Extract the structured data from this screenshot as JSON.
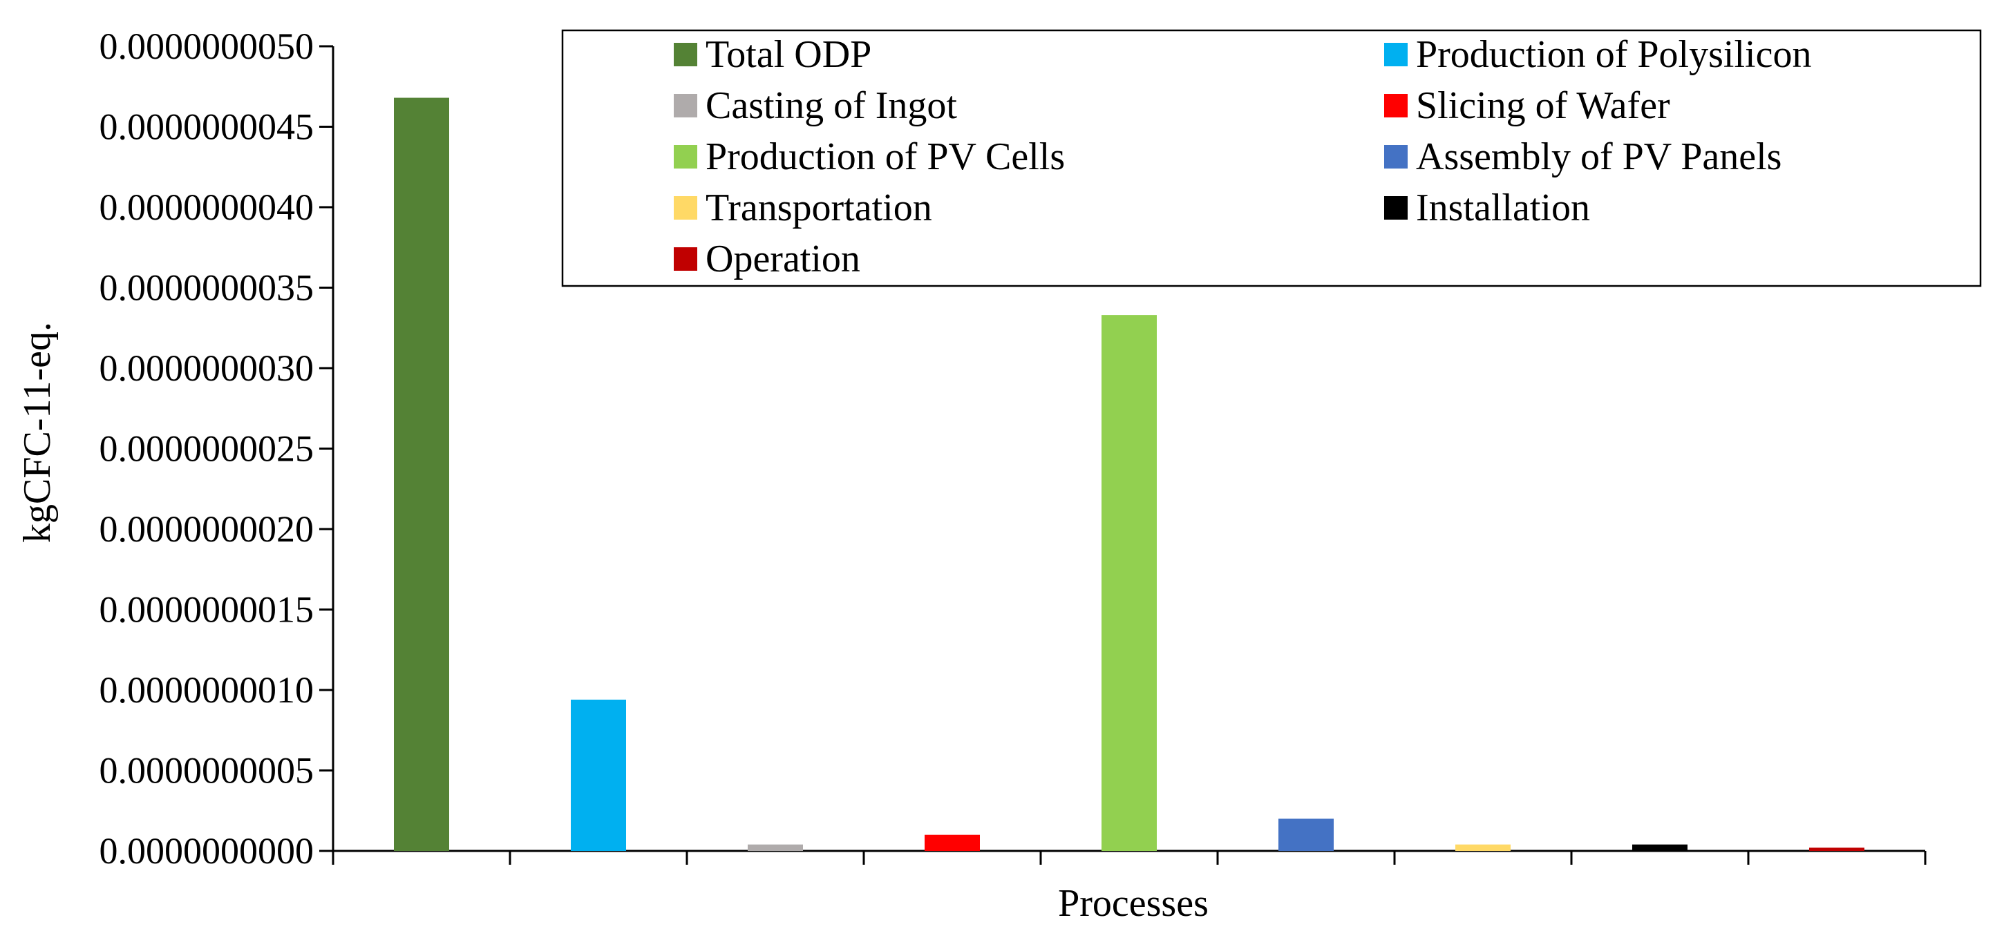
{
  "chart_data": {
    "type": "bar",
    "title": "",
    "xlabel": "Processes",
    "ylabel": "kgCFC-11-eq.",
    "ylim": [
      0,
      5e-09
    ],
    "yticks": [
      {
        "value": 0,
        "label": "0.0000000000"
      },
      {
        "value": 5e-10,
        "label": "0.0000000005"
      },
      {
        "value": 1e-09,
        "label": "0.0000000010"
      },
      {
        "value": 1.5e-09,
        "label": "0.0000000015"
      },
      {
        "value": 2e-09,
        "label": "0.0000000020"
      },
      {
        "value": 2.5e-09,
        "label": "0.0000000025"
      },
      {
        "value": 3e-09,
        "label": "0.0000000030"
      },
      {
        "value": 3.5e-09,
        "label": "0.0000000035"
      },
      {
        "value": 4e-09,
        "label": "0.0000000040"
      },
      {
        "value": 4.5e-09,
        "label": "0.0000000045"
      },
      {
        "value": 5e-09,
        "label": "0.0000000050"
      }
    ],
    "grid": false,
    "legend_position": "top-right",
    "series": [
      {
        "name": "Total ODP",
        "value": 4.68e-09,
        "color": "#548235"
      },
      {
        "name": "Production of Polysilicon",
        "value": 9.4e-10,
        "color": "#00b0f0"
      },
      {
        "name": "Casting of Ingot",
        "value": 4e-11,
        "color": "#afabab"
      },
      {
        "name": "Slicing of Wafer",
        "value": 1e-10,
        "color": "#ff0000"
      },
      {
        "name": "Production of PV Cells",
        "value": 3.33e-09,
        "color": "#92d050"
      },
      {
        "name": "Assembly of PV Panels",
        "value": 2e-10,
        "color": "#4472c4"
      },
      {
        "name": "Transportation",
        "value": 4e-11,
        "color": "#ffd966"
      },
      {
        "name": "Installation",
        "value": 4e-11,
        "color": "#000000"
      },
      {
        "name": "Operation",
        "value": 2e-11,
        "color": "#c00000"
      }
    ]
  }
}
